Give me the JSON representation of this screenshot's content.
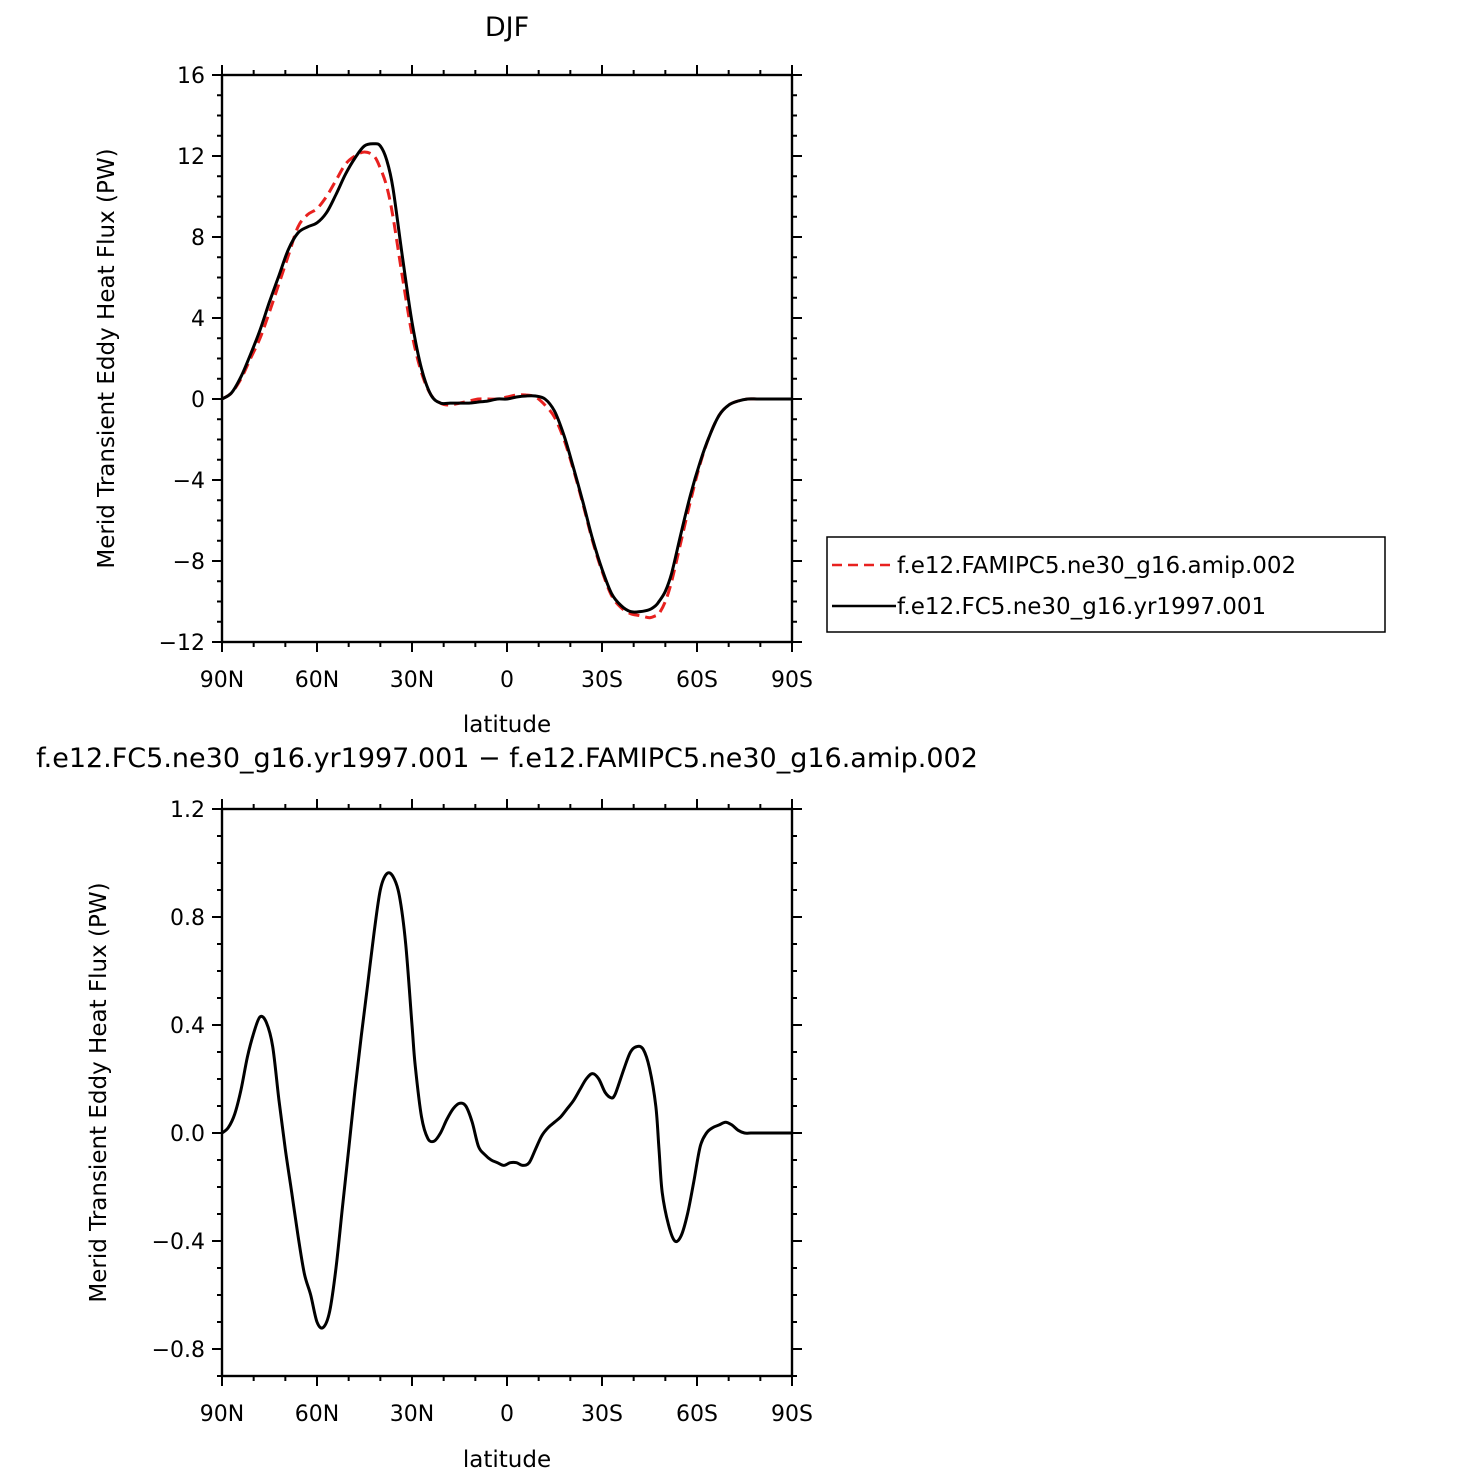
{
  "chart_data": [
    {
      "type": "line",
      "title": "DJF",
      "xlabel": "latitude",
      "ylabel": "Merid Transient Eddy Heat Flux (PW)",
      "xlim": [
        90,
        -90
      ],
      "ylim": [
        -12,
        16
      ],
      "xticks": [
        {
          "value": 90,
          "label": "90N"
        },
        {
          "value": 60,
          "label": "60N"
        },
        {
          "value": 30,
          "label": "30N"
        },
        {
          "value": 0,
          "label": "0"
        },
        {
          "value": -30,
          "label": "30S"
        },
        {
          "value": -60,
          "label": "60S"
        },
        {
          "value": -90,
          "label": "90S"
        }
      ],
      "yticks": [
        {
          "value": 16,
          "label": "16"
        },
        {
          "value": 12,
          "label": "12"
        },
        {
          "value": 8,
          "label": "8"
        },
        {
          "value": 4,
          "label": "4"
        },
        {
          "value": 0,
          "label": "0"
        },
        {
          "value": -4,
          "label": "−4"
        },
        {
          "value": -8,
          "label": "−8"
        },
        {
          "value": -12,
          "label": "−12"
        }
      ],
      "legend": {
        "position": "right"
      },
      "series": [
        {
          "name": "f.e12.FAMIPC5.ne30_g16.amip.002",
          "color": "#e8211f",
          "dash": "dashed",
          "x": [
            90,
            87,
            84,
            81,
            78,
            75,
            72,
            69,
            66,
            63,
            60,
            57,
            54,
            51,
            48,
            45,
            42,
            40,
            38,
            36,
            33,
            30,
            27,
            24,
            21,
            18,
            15,
            12,
            9,
            6,
            3,
            0,
            -3,
            -6,
            -9,
            -12,
            -15,
            -18,
            -21,
            -24,
            -27,
            -30,
            -33,
            -36,
            -39,
            -42,
            -45,
            -47,
            -48,
            -50,
            -52,
            -55,
            -58,
            -61,
            -64,
            -67,
            -70,
            -73,
            -76,
            -79,
            -82,
            -85,
            -88,
            -90
          ],
          "y": [
            0.0,
            0.3,
            1.0,
            2.0,
            3.0,
            4.3,
            5.7,
            7.1,
            8.5,
            9.1,
            9.4,
            10.0,
            10.8,
            11.6,
            12.0,
            12.2,
            12.0,
            11.4,
            10.5,
            9.0,
            6.0,
            3.2,
            1.3,
            0.2,
            -0.2,
            -0.3,
            -0.2,
            -0.1,
            0.0,
            0.0,
            0.0,
            0.1,
            0.2,
            0.2,
            0.1,
            -0.3,
            -0.9,
            -2.0,
            -3.5,
            -5.2,
            -7.0,
            -8.5,
            -9.7,
            -10.3,
            -10.6,
            -10.7,
            -10.8,
            -10.7,
            -10.6,
            -10.0,
            -9.0,
            -7.0,
            -5.0,
            -3.2,
            -1.8,
            -0.8,
            -0.3,
            -0.1,
            0.0,
            0.0,
            0.0,
            0.0,
            0.0,
            0.0
          ]
        },
        {
          "name": "f.e12.FC5.ne30_g16.yr1997.001",
          "color": "#000000",
          "dash": "solid",
          "x": [
            90,
            87,
            84,
            81,
            78,
            75,
            72,
            69,
            66,
            63,
            60,
            57,
            54,
            51,
            48,
            45,
            42,
            40,
            38,
            36,
            33,
            30,
            27,
            24,
            21,
            18,
            15,
            12,
            9,
            6,
            3,
            0,
            -3,
            -6,
            -9,
            -12,
            -15,
            -18,
            -21,
            -24,
            -27,
            -30,
            -33,
            -36,
            -39,
            -42,
            -45,
            -47,
            -48,
            -50,
            -52,
            -55,
            -58,
            -61,
            -64,
            -67,
            -70,
            -73,
            -76,
            -79,
            -82,
            -85,
            -88,
            -90
          ],
          "y": [
            0.0,
            0.3,
            1.1,
            2.2,
            3.4,
            4.8,
            6.1,
            7.4,
            8.2,
            8.5,
            8.7,
            9.2,
            10.1,
            11.1,
            11.9,
            12.5,
            12.6,
            12.5,
            11.8,
            10.4,
            7.0,
            3.8,
            1.5,
            0.2,
            -0.2,
            -0.2,
            -0.2,
            -0.2,
            -0.15,
            -0.1,
            0.0,
            0.0,
            0.1,
            0.15,
            0.15,
            0.0,
            -0.6,
            -1.8,
            -3.4,
            -5.1,
            -6.9,
            -8.4,
            -9.6,
            -10.2,
            -10.5,
            -10.5,
            -10.4,
            -10.2,
            -10.0,
            -9.5,
            -8.6,
            -6.6,
            -4.7,
            -3.1,
            -1.8,
            -0.8,
            -0.3,
            -0.1,
            0.0,
            0.0,
            0.0,
            0.0,
            0.0,
            0.0
          ]
        }
      ]
    },
    {
      "type": "line",
      "title": "f.e12.FC5.ne30_g16.yr1997.001 − f.e12.FAMIPC5.ne30_g16.amip.002",
      "xlabel": "latitude",
      "ylabel": "Merid Transient Eddy Heat Flux (PW)",
      "xlim": [
        90,
        -90
      ],
      "ylim": [
        -0.9,
        1.2
      ],
      "xticks": [
        {
          "value": 90,
          "label": "90N"
        },
        {
          "value": 60,
          "label": "60N"
        },
        {
          "value": 30,
          "label": "30N"
        },
        {
          "value": 0,
          "label": "0"
        },
        {
          "value": -30,
          "label": "30S"
        },
        {
          "value": -60,
          "label": "60S"
        },
        {
          "value": -90,
          "label": "90S"
        }
      ],
      "yticks": [
        {
          "value": 1.2,
          "label": "1.2"
        },
        {
          "value": 0.8,
          "label": "0.8"
        },
        {
          "value": 0.4,
          "label": "0.4"
        },
        {
          "value": 0.0,
          "label": "0.0"
        },
        {
          "value": -0.4,
          "label": "−0.4"
        },
        {
          "value": -0.8,
          "label": "−0.8"
        }
      ],
      "series": [
        {
          "color": "#000000",
          "dash": "solid",
          "x": [
            90,
            88,
            86,
            84,
            82,
            80,
            78,
            76,
            74,
            72,
            70,
            68,
            66,
            64,
            62,
            60,
            58,
            56,
            54,
            52,
            50,
            48,
            46,
            44,
            42,
            40,
            38,
            36,
            34,
            32,
            30,
            29,
            27,
            25,
            23,
            21,
            19,
            17,
            15,
            13,
            11,
            9,
            7,
            5,
            3,
            1,
            -1,
            -3,
            -5,
            -7,
            -9,
            -11,
            -13,
            -15,
            -17,
            -19,
            -21,
            -23,
            -25,
            -27,
            -29,
            -31,
            -33,
            -34,
            -35,
            -37,
            -39,
            -41,
            -43,
            -45,
            -47,
            -48,
            -49,
            -51,
            -53,
            -55,
            -57,
            -59,
            -61,
            -63,
            -65,
            -67,
            -69,
            -71,
            -73,
            -75,
            -77,
            -79,
            -81,
            -83,
            -85,
            -88,
            -90
          ],
          "y": [
            0.0,
            0.02,
            0.07,
            0.16,
            0.28,
            0.37,
            0.43,
            0.41,
            0.32,
            0.12,
            -0.06,
            -0.22,
            -0.38,
            -0.52,
            -0.6,
            -0.7,
            -0.72,
            -0.66,
            -0.5,
            -0.28,
            -0.06,
            0.16,
            0.36,
            0.55,
            0.74,
            0.9,
            0.96,
            0.95,
            0.88,
            0.7,
            0.4,
            0.25,
            0.06,
            -0.02,
            -0.03,
            0.0,
            0.05,
            0.09,
            0.11,
            0.1,
            0.04,
            -0.05,
            -0.08,
            -0.1,
            -0.11,
            -0.12,
            -0.11,
            -0.11,
            -0.12,
            -0.11,
            -0.06,
            -0.01,
            0.02,
            0.04,
            0.06,
            0.09,
            0.12,
            0.16,
            0.2,
            0.22,
            0.2,
            0.15,
            0.13,
            0.14,
            0.17,
            0.24,
            0.3,
            0.32,
            0.31,
            0.24,
            0.1,
            -0.06,
            -0.22,
            -0.34,
            -0.4,
            -0.38,
            -0.3,
            -0.18,
            -0.05,
            0.0,
            0.02,
            0.03,
            0.04,
            0.03,
            0.01,
            0.0,
            0.0,
            0.0,
            0.0,
            0.0,
            0.0,
            0.0,
            0.0
          ]
        }
      ]
    }
  ]
}
